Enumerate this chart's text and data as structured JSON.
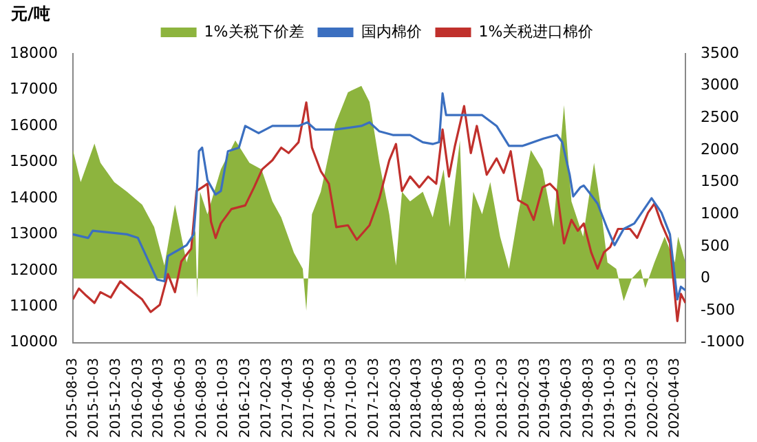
{
  "chart_data": {
    "type": "line",
    "ylabel": "元/吨",
    "legend": "top",
    "grid": false,
    "marker": "none",
    "xlim": [
      "2015-08-03",
      "2020-05-03"
    ],
    "xticks": [
      "2015-08-03",
      "2015-10-03",
      "2015-12-03",
      "2016-02-03",
      "2016-04-03",
      "2016-06-03",
      "2016-08-03",
      "2016-10-03",
      "2016-12-03",
      "2017-02-03",
      "2017-04-03",
      "2017-06-03",
      "2017-08-03",
      "2017-10-03",
      "2017-12-03",
      "2018-02-03",
      "2018-04-03",
      "2018-06-03",
      "2018-08-03",
      "2018-10-03",
      "2018-12-03",
      "2019-02-03",
      "2019-04-03",
      "2019-06-03",
      "2019-08-03",
      "2019-10-03",
      "2019-12-03",
      "2020-02-03",
      "2020-04-03"
    ],
    "ylim": [
      10000,
      18000
    ],
    "yticks": [
      10000,
      11000,
      12000,
      13000,
      14000,
      15000,
      16000,
      17000,
      18000
    ],
    "y2lim": [
      -1000,
      3500
    ],
    "y2ticks": [
      -1000,
      -500,
      0,
      500,
      1000,
      1500,
      2000,
      2500,
      3000,
      3500
    ],
    "series": [
      {
        "name": "1%关税下价差",
        "type": "area",
        "axis": "y2",
        "color": "#8db43e",
        "x": [
          "2015-08-03",
          "2015-08-25",
          "2015-10-03",
          "2015-10-20",
          "2015-11-28",
          "2016-01-03",
          "2016-02-15",
          "2016-03-20",
          "2016-04-18",
          "2016-05-18",
          "2016-06-20",
          "2016-07-15",
          "2016-07-20",
          "2016-07-28",
          "2016-08-18",
          "2016-09-25",
          "2016-11-05",
          "2016-12-15",
          "2017-01-18",
          "2017-02-18",
          "2017-03-15",
          "2017-04-20",
          "2017-05-15",
          "2017-05-25",
          "2017-06-10",
          "2017-07-05",
          "2017-08-15",
          "2017-09-20",
          "2017-10-28",
          "2017-11-20",
          "2017-12-18",
          "2018-01-15",
          "2018-02-03",
          "2018-02-20",
          "2018-03-15",
          "2018-04-20",
          "2018-05-18",
          "2018-06-18",
          "2018-07-05",
          "2018-08-03",
          "2018-08-18",
          "2018-09-10",
          "2018-10-05",
          "2018-10-28",
          "2018-11-25",
          "2018-12-20",
          "2019-01-15",
          "2019-02-20",
          "2019-03-25",
          "2019-04-25",
          "2019-05-25",
          "2019-06-15",
          "2019-07-18",
          "2019-08-18",
          "2019-09-05",
          "2019-09-25",
          "2019-10-20",
          "2019-11-10",
          "2019-12-03",
          "2019-12-28",
          "2020-01-10",
          "2020-02-05",
          "2020-03-05",
          "2020-04-03",
          "2020-04-12",
          "2020-05-03"
        ],
        "values": [
          2000,
          1500,
          2100,
          1800,
          1500,
          1350,
          1150,
          800,
          200,
          1150,
          250,
          750,
          -300,
          1350,
          1000,
          1700,
          2150,
          1800,
          1700,
          1200,
          950,
          400,
          150,
          -500,
          1000,
          1350,
          2400,
          2900,
          3000,
          2750,
          1800,
          1000,
          200,
          1350,
          1200,
          1350,
          950,
          1700,
          800,
          2150,
          -50,
          1350,
          1000,
          1500,
          650,
          150,
          1000,
          2000,
          1700,
          800,
          2700,
          1200,
          650,
          1800,
          1150,
          250,
          150,
          -350,
          0,
          150,
          -150,
          250,
          650,
          250,
          650,
          250
        ]
      },
      {
        "name": "国内棉价",
        "type": "line",
        "axis": "y",
        "color": "#3b6fc0",
        "x": [
          "2015-08-03",
          "2015-09-15",
          "2015-09-28",
          "2016-01-03",
          "2016-02-03",
          "2016-03-28",
          "2016-04-18",
          "2016-04-28",
          "2016-06-20",
          "2016-07-10",
          "2016-07-18",
          "2016-07-25",
          "2016-08-03",
          "2016-08-18",
          "2016-09-10",
          "2016-09-25",
          "2016-10-15",
          "2016-11-15",
          "2016-12-03",
          "2017-01-10",
          "2017-02-18",
          "2017-05-03",
          "2017-05-28",
          "2017-06-20",
          "2017-08-15",
          "2017-10-28",
          "2017-11-20",
          "2017-12-18",
          "2018-01-25",
          "2018-03-15",
          "2018-04-20",
          "2018-05-18",
          "2018-06-05",
          "2018-06-15",
          "2018-06-25",
          "2018-08-03",
          "2018-10-05",
          "2018-11-15",
          "2018-12-20",
          "2019-01-28",
          "2019-03-28",
          "2019-05-05",
          "2019-05-20",
          "2019-06-10",
          "2019-06-20",
          "2019-07-10",
          "2019-07-20",
          "2019-08-05",
          "2019-08-28",
          "2019-09-25",
          "2019-10-15",
          "2019-11-10",
          "2019-12-10",
          "2020-01-28",
          "2020-02-25",
          "2020-03-20",
          "2020-04-10",
          "2020-04-20",
          "2020-05-03"
        ],
        "values": [
          13000,
          12900,
          13100,
          13000,
          12900,
          11750,
          11700,
          12400,
          12700,
          13000,
          14000,
          15300,
          15400,
          14500,
          14100,
          14200,
          15300,
          15400,
          16000,
          15800,
          16000,
          16000,
          16100,
          15900,
          15900,
          16000,
          16100,
          15850,
          15750,
          15750,
          15550,
          15500,
          15550,
          16900,
          16300,
          16300,
          16300,
          16000,
          15450,
          15450,
          15650,
          15750,
          15550,
          14650,
          14050,
          14300,
          14350,
          14150,
          13850,
          13150,
          12700,
          13150,
          13300,
          14000,
          13600,
          13000,
          11200,
          11550,
          11450
        ]
      },
      {
        "name": "1%关税进口棉价",
        "type": "line",
        "axis": "y",
        "color": "#c0302c",
        "x": [
          "2015-08-03",
          "2015-08-20",
          "2015-09-10",
          "2015-10-03",
          "2015-10-20",
          "2015-11-18",
          "2015-12-15",
          "2016-01-20",
          "2016-02-15",
          "2016-03-10",
          "2016-04-05",
          "2016-04-28",
          "2016-05-18",
          "2016-06-05",
          "2016-07-03",
          "2016-07-18",
          "2016-08-03",
          "2016-08-18",
          "2016-08-28",
          "2016-09-10",
          "2016-09-25",
          "2016-10-25",
          "2016-12-03",
          "2016-12-28",
          "2017-01-20",
          "2017-02-18",
          "2017-03-15",
          "2017-04-05",
          "2017-05-03",
          "2017-05-25",
          "2017-06-10",
          "2017-07-05",
          "2017-07-28",
          "2017-08-18",
          "2017-09-20",
          "2017-10-15",
          "2017-11-20",
          "2017-12-18",
          "2018-01-15",
          "2018-02-03",
          "2018-02-20",
          "2018-03-15",
          "2018-04-10",
          "2018-05-05",
          "2018-05-28",
          "2018-06-15",
          "2018-07-03",
          "2018-07-20",
          "2018-08-15",
          "2018-09-03",
          "2018-09-20",
          "2018-10-18",
          "2018-11-15",
          "2018-12-05",
          "2018-12-25",
          "2019-01-15",
          "2019-02-10",
          "2019-02-28",
          "2019-03-25",
          "2019-04-15",
          "2019-05-05",
          "2019-05-25",
          "2019-06-15",
          "2019-07-03",
          "2019-07-20",
          "2019-08-10",
          "2019-08-28",
          "2019-09-15",
          "2019-10-03",
          "2019-10-25",
          "2019-11-28",
          "2019-12-18",
          "2020-01-18",
          "2020-02-05",
          "2020-02-25",
          "2020-03-20",
          "2020-04-10",
          "2020-04-20",
          "2020-05-03"
        ],
        "values": [
          11200,
          11500,
          11300,
          11100,
          11400,
          11250,
          11700,
          11400,
          11200,
          10850,
          11050,
          11900,
          11400,
          12250,
          12600,
          14200,
          14300,
          14400,
          13350,
          12900,
          13300,
          13700,
          13800,
          14300,
          14800,
          15050,
          15400,
          15250,
          15550,
          16650,
          15400,
          14750,
          14400,
          13200,
          13250,
          12850,
          13250,
          14000,
          15050,
          15500,
          14200,
          14600,
          14300,
          14600,
          14400,
          15900,
          14600,
          15450,
          16550,
          15250,
          16000,
          14650,
          15100,
          14700,
          15300,
          13950,
          13800,
          13400,
          14300,
          14400,
          14200,
          12750,
          13400,
          13100,
          13300,
          12500,
          12050,
          12500,
          12650,
          13150,
          13150,
          12900,
          13600,
          13850,
          13300,
          12750,
          10600,
          11350,
          11100
        ]
      }
    ]
  }
}
